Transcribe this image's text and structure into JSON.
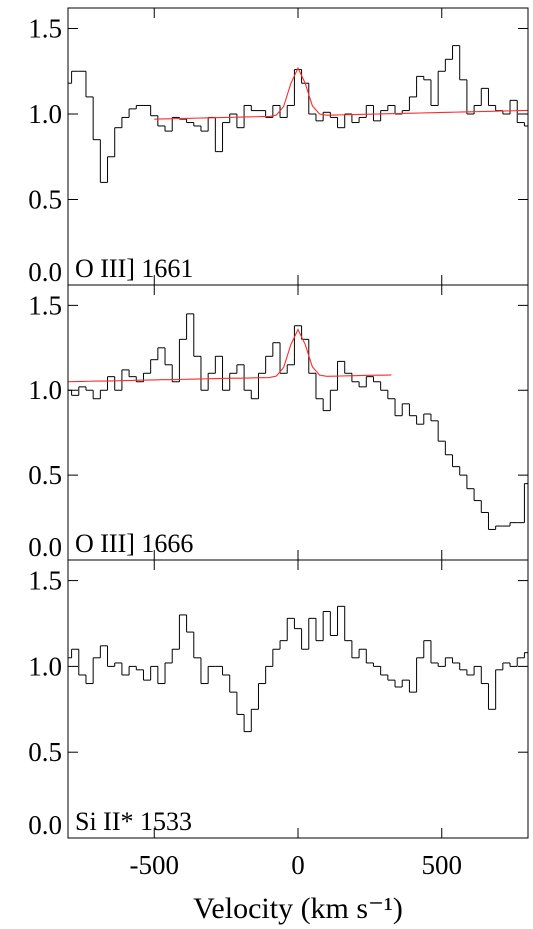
{
  "chart_data": [
    {
      "type": "line",
      "annotation": "O III] 1661",
      "x": [
        -800,
        -775,
        -750,
        -725,
        -700,
        -675,
        -650,
        -625,
        -600,
        -575,
        -550,
        -525,
        -500,
        -475,
        -450,
        -425,
        -400,
        -375,
        -350,
        -325,
        -300,
        -275,
        -250,
        -225,
        -200,
        -175,
        -150,
        -125,
        -100,
        -75,
        -50,
        -25,
        0,
        25,
        50,
        75,
        100,
        125,
        150,
        175,
        200,
        225,
        250,
        275,
        300,
        325,
        350,
        375,
        400,
        425,
        450,
        475,
        500,
        525,
        550,
        575,
        600,
        625,
        650,
        675,
        700,
        725,
        750,
        775,
        800
      ],
      "series": [
        {
          "color": "#000000",
          "drawstyle": "steps-mid",
          "values": [
            1.18,
            1.25,
            1.25,
            1.1,
            0.85,
            0.6,
            0.75,
            0.92,
            0.98,
            1.03,
            1.05,
            1.05,
            0.99,
            0.93,
            0.9,
            0.98,
            0.97,
            0.95,
            0.93,
            0.9,
            0.98,
            0.78,
            0.95,
            1.0,
            0.92,
            1.05,
            1.02,
            1.02,
            0.98,
            1.05,
            0.98,
            1.05,
            1.26,
            1.18,
            1.0,
            0.96,
            1.01,
            0.98,
            0.92,
            1.0,
            0.95,
            0.98,
            1.05,
            0.96,
            1.02,
            1.05,
            1.0,
            1.02,
            1.1,
            1.22,
            1.2,
            1.05,
            1.25,
            1.32,
            1.4,
            1.2,
            1.0,
            1.05,
            1.15,
            1.05,
            1.02,
            1.0,
            1.08,
            0.95,
            0.93
          ]
        },
        {
          "color": "#ff2a2a",
          "drawstyle": "default",
          "values": [
            null,
            null,
            null,
            null,
            null,
            null,
            null,
            null,
            null,
            null,
            null,
            null,
            0.97,
            0.971,
            0.972,
            0.973,
            0.974,
            0.975,
            0.976,
            0.977,
            0.978,
            0.979,
            0.98,
            0.981,
            0.982,
            0.983,
            0.984,
            0.985,
            0.985,
            0.994,
            1.044,
            1.178,
            1.269,
            1.18,
            1.048,
            1.0,
            0.993,
            0.994,
            0.995,
            0.996,
            0.997,
            0.998,
            0.999,
            1.0,
            1.001,
            1.002,
            1.003,
            1.004,
            1.005,
            1.006,
            1.007,
            1.008,
            1.009,
            1.01,
            1.011,
            1.012,
            1.013,
            1.014,
            1.015,
            1.016,
            1.017,
            1.018,
            1.019,
            1.02,
            1.021
          ]
        }
      ],
      "xlim": [
        -800,
        800
      ],
      "xticks": [
        -500,
        0,
        500
      ],
      "ylim": [
        0,
        1.62
      ],
      "yticks": [
        {
          "value": 0,
          "label": "0.0"
        },
        0.5,
        {
          "value": 1,
          "label": "1.0"
        },
        1.5
      ]
    },
    {
      "type": "line",
      "annotation": "O III] 1666",
      "x": [
        -800,
        -775,
        -750,
        -725,
        -700,
        -675,
        -650,
        -625,
        -600,
        -575,
        -550,
        -525,
        -500,
        -475,
        -450,
        -425,
        -400,
        -375,
        -350,
        -325,
        -300,
        -275,
        -250,
        -225,
        -200,
        -175,
        -150,
        -125,
        -100,
        -75,
        -50,
        -25,
        0,
        25,
        50,
        75,
        100,
        125,
        150,
        175,
        200,
        225,
        250,
        275,
        300,
        325,
        350,
        375,
        400,
        425,
        450,
        475,
        500,
        525,
        550,
        575,
        600,
        625,
        650,
        675,
        700,
        725,
        750,
        775,
        800
      ],
      "series": [
        {
          "color": "#000000",
          "drawstyle": "steps-mid",
          "values": [
            1.0,
            0.97,
            1.02,
            1.0,
            0.95,
            1.0,
            1.08,
            1.0,
            1.12,
            1.08,
            1.05,
            1.1,
            1.18,
            1.25,
            1.15,
            1.05,
            1.3,
            1.45,
            1.2,
            1.0,
            1.1,
            1.2,
            1.0,
            1.1,
            1.15,
            1.0,
            0.95,
            1.1,
            1.2,
            1.28,
            1.1,
            1.15,
            1.38,
            1.3,
            1.1,
            0.95,
            0.88,
            1.0,
            1.17,
            1.1,
            1.05,
            1.02,
            1.08,
            1.05,
            1.0,
            0.95,
            0.85,
            0.92,
            0.85,
            0.8,
            0.86,
            0.82,
            0.7,
            0.62,
            0.55,
            0.5,
            0.42,
            0.35,
            0.28,
            0.18,
            0.2,
            0.2,
            0.22,
            0.22,
            0.45
          ]
        },
        {
          "color": "#ff2a2a",
          "drawstyle": "default",
          "values": [
            1.05,
            1.051,
            1.052,
            1.053,
            1.054,
            1.054,
            1.055,
            1.056,
            1.057,
            1.058,
            1.059,
            1.06,
            1.061,
            1.062,
            1.062,
            1.063,
            1.064,
            1.065,
            1.066,
            1.067,
            1.068,
            1.069,
            1.07,
            1.071,
            1.071,
            1.072,
            1.073,
            1.074,
            1.075,
            1.084,
            1.134,
            1.268,
            1.358,
            1.27,
            1.138,
            1.089,
            1.082,
            1.083,
            1.084,
            1.085,
            1.086,
            1.087,
            1.088,
            1.089,
            1.089,
            1.09,
            null,
            null,
            null,
            null,
            null,
            null,
            null,
            null,
            null,
            null,
            null,
            null,
            null,
            null,
            null,
            null,
            null,
            null,
            null
          ]
        }
      ],
      "xlim": [
        -800,
        800
      ],
      "xticks": [
        -500,
        0,
        500
      ],
      "ylim": [
        0,
        1.62
      ],
      "yticks": [
        {
          "value": 0,
          "label": "0.0"
        },
        0.5,
        {
          "value": 1,
          "label": "1.0"
        },
        1.5
      ]
    },
    {
      "type": "line",
      "annotation": "Si II* 1533",
      "xlabel": "Velocity (km s⁻¹)",
      "x": [
        -800,
        -775,
        -750,
        -725,
        -700,
        -675,
        -650,
        -625,
        -600,
        -575,
        -550,
        -525,
        -500,
        -475,
        -450,
        -425,
        -400,
        -375,
        -350,
        -325,
        -300,
        -275,
        -250,
        -225,
        -200,
        -175,
        -150,
        -125,
        -100,
        -75,
        -50,
        -25,
        0,
        25,
        50,
        75,
        100,
        125,
        150,
        175,
        200,
        225,
        250,
        275,
        300,
        325,
        350,
        375,
        400,
        425,
        450,
        475,
        500,
        525,
        550,
        575,
        600,
        625,
        650,
        675,
        700,
        725,
        750,
        775,
        800
      ],
      "series": [
        {
          "color": "#000000",
          "drawstyle": "steps-mid",
          "values": [
            1.05,
            1.1,
            0.95,
            0.9,
            1.05,
            1.12,
            1.0,
            1.02,
            0.95,
            1.0,
            0.98,
            0.92,
            1.0,
            0.9,
            1.02,
            1.1,
            1.3,
            1.2,
            1.05,
            0.9,
            1.0,
            1.0,
            0.95,
            0.85,
            0.72,
            0.62,
            0.75,
            0.9,
            1.0,
            1.1,
            1.15,
            1.28,
            1.22,
            1.1,
            1.28,
            1.15,
            1.32,
            1.18,
            1.35,
            1.15,
            1.05,
            1.1,
            1.02,
            1.0,
            0.95,
            0.92,
            0.88,
            0.92,
            0.85,
            1.05,
            1.15,
            1.02,
            1.0,
            1.05,
            1.02,
            0.98,
            0.95,
            1.0,
            0.9,
            0.75,
            0.98,
            1.02,
            1.0,
            1.05,
            1.08
          ]
        }
      ],
      "xlim": [
        -800,
        800
      ],
      "xticks": [
        -500,
        0,
        500
      ],
      "ylim": [
        0,
        1.62
      ],
      "yticks": [
        {
          "value": 0,
          "label": "0.0"
        },
        0.5,
        {
          "value": 1,
          "label": "1.0"
        },
        1.5
      ]
    }
  ]
}
